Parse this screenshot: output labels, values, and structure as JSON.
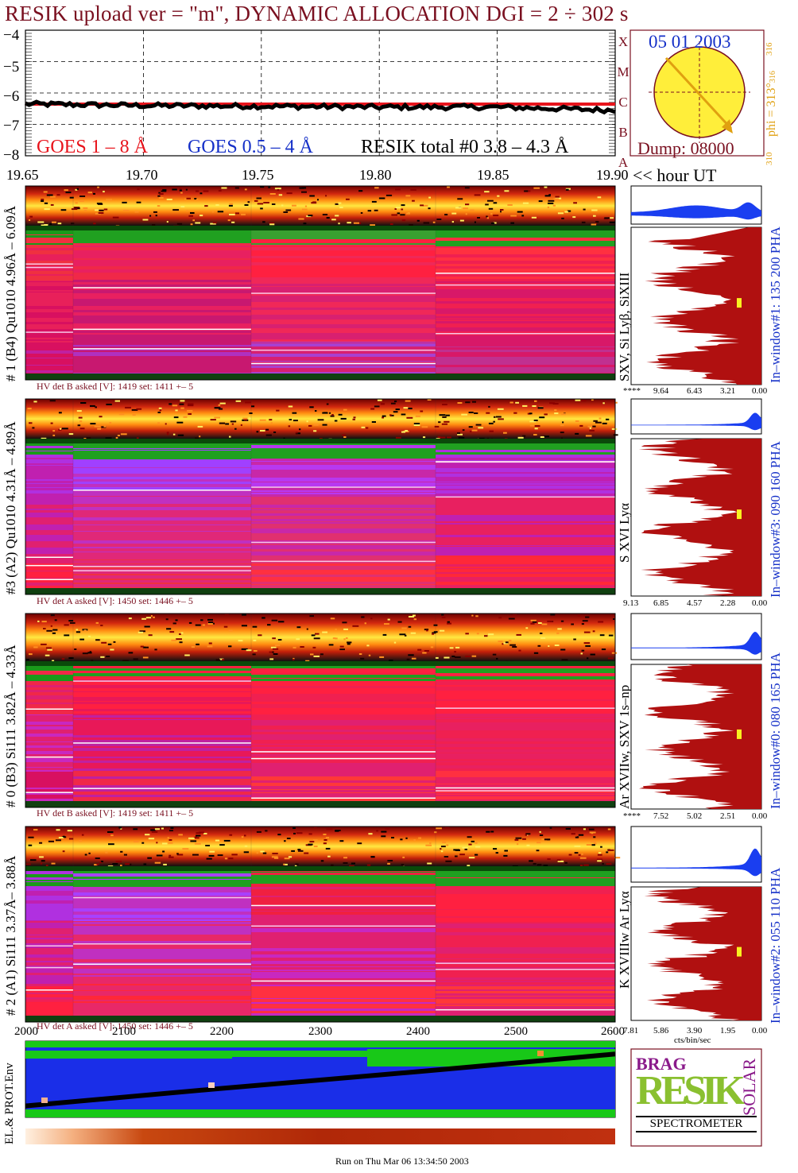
{
  "header": {
    "title": "RESIK upload ver = \"m\", DYNAMIC ALLOCATION  DGI =   2 ÷ 302 s"
  },
  "goes_panel": {
    "y_ticks": [
      "−4",
      "−5",
      "−6",
      "−7",
      "−8"
    ],
    "legend": {
      "goes1": "GOES 1 – 8 Å",
      "goes2": "GOES 0.5 – 4 Å",
      "resik": "RESIK total #0  3.8 – 4.3 Å"
    },
    "class_letters": [
      "X",
      "M",
      "C",
      "B",
      "A"
    ],
    "colors": {
      "goes1": "#e8141c",
      "goes2": "#1530c8",
      "resik": "#000000"
    }
  },
  "sun_panel": {
    "date": "05 01 2003",
    "dump": "Dump: 08000",
    "phi": "phi = 313°",
    "phi_top": "316",
    "phi_small": "316",
    "phi_bottom": "310"
  },
  "time_axis": {
    "ticks": [
      "19.65",
      "19.70",
      "19.75",
      "19.80",
      "19.85",
      "19.90"
    ],
    "unit": "<< hour UT"
  },
  "channels": [
    {
      "left_label": "# 1 (B4) Qu1010 4.96Å – 6.09Å",
      "line_label": "SXV, Si Lyβ, SiXIII",
      "window_label": "In–window#1:  135 200 PHA",
      "hv": "HV det B asked [V]:  1419 set:  1411 +–   5",
      "pha_ticks": [
        "****",
        "9.64",
        "6.43",
        "3.21",
        "0.00"
      ]
    },
    {
      "left_label": "#3 (A2) Qu1010  4.31Å – 4.89Å",
      "line_label": "S XVI Lyα",
      "window_label": "In–window#3:  090 160 PHA",
      "hv": "HV det A asked [V]:  1450 set:  1446 +–   5",
      "pha_ticks": [
        "9.13",
        "6.85",
        "4.57",
        "2.28",
        "0.00"
      ]
    },
    {
      "left_label": "# 0 (B3) Si111  3.82Å – 4.33Å",
      "line_label": "Ar XVIIw,  SXV 1s–np",
      "window_label": "In–window#0:  080 165 PHA",
      "hv": "HV det B asked [V]:  1419 set:  1411 +–   5",
      "pha_ticks": [
        "****",
        "7.52",
        "5.02",
        "2.51",
        "0.00"
      ]
    },
    {
      "left_label": "# 2 (A1) Si111  3.37Å– 3.88Å",
      "line_label": "K XVIIIw  Ar Lyα",
      "window_label": "In–window#2:  055 110 PHA",
      "hv": "HV det A asked [V]:  1450 set:  1446 +–   5",
      "pha_ticks": [
        "7.81",
        "5.86",
        "3.90",
        "1.95",
        "0.00"
      ]
    }
  ],
  "pha_unit": "cts/bin/sec",
  "env_panel": {
    "label": "EL.& PROT.Env",
    "x_ticks": [
      "2000",
      "2100",
      "2200",
      "2300",
      "2400",
      "2500",
      "2600"
    ]
  },
  "logo": {
    "letters_top": "BRAG",
    "main": "RESIK",
    "side": "SOLAR",
    "bottom": "SPECTROMETER"
  },
  "footer": {
    "text": "Run on Thu Mar 06 13:34:50 2003"
  },
  "chart_data": [
    {
      "type": "line",
      "title": "",
      "xlabel": "hour UT",
      "ylabel": "",
      "xlim": [
        19.65,
        19.9
      ],
      "ylim": [
        -8,
        -4
      ],
      "series": [
        {
          "name": "GOES 1 – 8 Å",
          "x": [
            19.65,
            19.9
          ],
          "values": [
            -6.25,
            -6.25
          ]
        },
        {
          "name": "RESIK total #0  3.8 – 4.3 Å",
          "x": [
            19.65,
            19.7,
            19.75,
            19.8,
            19.85,
            19.9
          ],
          "values": [
            -6.35,
            -6.4,
            -6.42,
            -6.45,
            -6.45,
            -6.55
          ]
        }
      ]
    },
    {
      "type": "line",
      "xlabel": "",
      "ylabel": "",
      "xlim": [
        2000,
        2600
      ],
      "series": [
        {
          "name": "",
          "x": [
            2000,
            2200,
            2400,
            2600
          ],
          "values": [
            0.15,
            0.38,
            0.6,
            0.83
          ]
        }
      ]
    }
  ]
}
